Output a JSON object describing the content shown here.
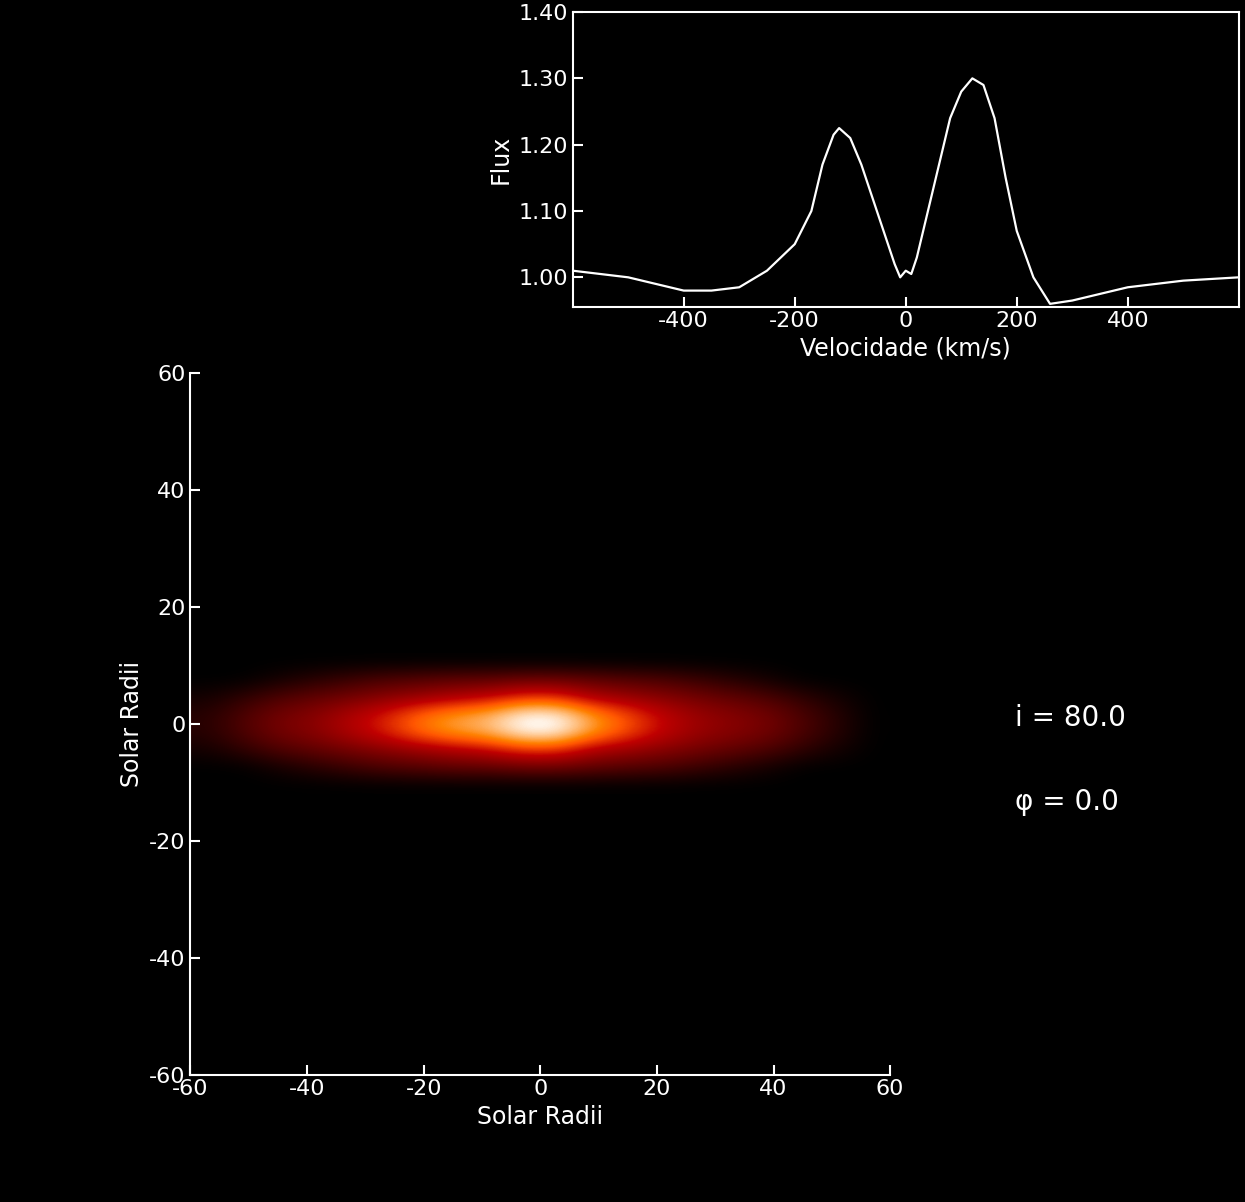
{
  "chart_data": [
    {
      "type": "line",
      "x_label": "Velocidade (km/s)",
      "y_label": "Flux",
      "color": "#ffffff",
      "x": [
        -600,
        -500,
        -400,
        -350,
        -300,
        -250,
        -200,
        -170,
        -150,
        -130,
        -120,
        -100,
        -80,
        -60,
        -40,
        -20,
        -10,
        0,
        10,
        20,
        40,
        60,
        80,
        100,
        120,
        140,
        160,
        180,
        200,
        230,
        260,
        300,
        400,
        500,
        600
      ],
      "values": [
        1.01,
        1.0,
        0.98,
        0.98,
        0.985,
        1.01,
        1.05,
        1.1,
        1.17,
        1.215,
        1.225,
        1.21,
        1.17,
        1.12,
        1.07,
        1.02,
        1.0,
        1.01,
        1.005,
        1.03,
        1.1,
        1.17,
        1.24,
        1.28,
        1.3,
        1.29,
        1.24,
        1.15,
        1.07,
        1.0,
        0.96,
        0.965,
        0.985,
        0.995,
        1.0
      ],
      "xlim": [
        -600,
        600
      ],
      "xticks": [
        -400,
        -200,
        0,
        200,
        400
      ],
      "ylim": [
        0.956,
        1.4
      ],
      "yticks": [
        {
          "value": 1.0,
          "label": "1.00"
        },
        {
          "value": 1.1,
          "label": "1.10"
        },
        {
          "value": 1.2,
          "label": "1.20"
        },
        {
          "value": 1.3,
          "label": "1.30"
        },
        {
          "value": 1.4,
          "label": "1.40"
        }
      ]
    },
    {
      "type": "heatmap",
      "x_label": "Solar Radii",
      "y_label": "Solar Radii",
      "x_edges": [
        -60,
        -54,
        -48,
        -42,
        -36,
        -30,
        -24,
        -18,
        -12,
        -6,
        0,
        6,
        12,
        18,
        24,
        30,
        36,
        42,
        48,
        54,
        60
      ],
      "y_edges": [
        -12,
        -9,
        -6,
        -3,
        0,
        3,
        6,
        9,
        12
      ],
      "cells": [
        [
          0,
          0,
          0,
          0,
          0,
          0,
          0,
          0,
          0,
          0,
          0,
          0,
          0,
          0,
          0,
          0,
          0,
          0,
          0,
          0
        ],
        [
          0,
          0,
          0.05,
          0.1,
          0.15,
          0.2,
          0.22,
          0.25,
          0.25,
          0.28,
          0.28,
          0.25,
          0.22,
          0.2,
          0.15,
          0.1,
          0.05,
          0,
          0,
          0
        ],
        [
          0.05,
          0.12,
          0.2,
          0.25,
          0.3,
          0.35,
          0.4,
          0.45,
          0.5,
          0.6,
          0.6,
          0.45,
          0.4,
          0.35,
          0.3,
          0.25,
          0.2,
          0.12,
          0.05,
          0
        ],
        [
          0.1,
          0.2,
          0.3,
          0.35,
          0.45,
          0.55,
          0.7,
          0.8,
          0.85,
          1.0,
          1.0,
          0.8,
          0.65,
          0.5,
          0.4,
          0.35,
          0.3,
          0.2,
          0.1,
          0
        ],
        [
          0.1,
          0.2,
          0.3,
          0.35,
          0.45,
          0.55,
          0.7,
          0.8,
          0.85,
          1.0,
          1.0,
          0.8,
          0.65,
          0.5,
          0.4,
          0.35,
          0.3,
          0.2,
          0.1,
          0
        ],
        [
          0.05,
          0.12,
          0.2,
          0.25,
          0.3,
          0.35,
          0.4,
          0.45,
          0.5,
          0.6,
          0.6,
          0.45,
          0.4,
          0.35,
          0.3,
          0.25,
          0.2,
          0.12,
          0.05,
          0
        ],
        [
          0,
          0,
          0.05,
          0.1,
          0.15,
          0.2,
          0.22,
          0.25,
          0.25,
          0.28,
          0.28,
          0.25,
          0.22,
          0.2,
          0.15,
          0.1,
          0.05,
          0,
          0,
          0
        ],
        [
          0,
          0,
          0,
          0,
          0,
          0,
          0,
          0,
          0,
          0,
          0,
          0,
          0,
          0,
          0,
          0,
          0,
          0,
          0,
          0
        ]
      ],
      "zlim": [
        0,
        1
      ],
      "xlim": [
        -60,
        60
      ],
      "xticks": [
        -60,
        -40,
        -20,
        0,
        20,
        40,
        60
      ],
      "ylim": [
        -60,
        60
      ],
      "yticks": [
        -60,
        -40,
        -20,
        0,
        20,
        40,
        60
      ],
      "annotations": [
        "i = 80.0",
        "φ = 0.0"
      ]
    }
  ]
}
